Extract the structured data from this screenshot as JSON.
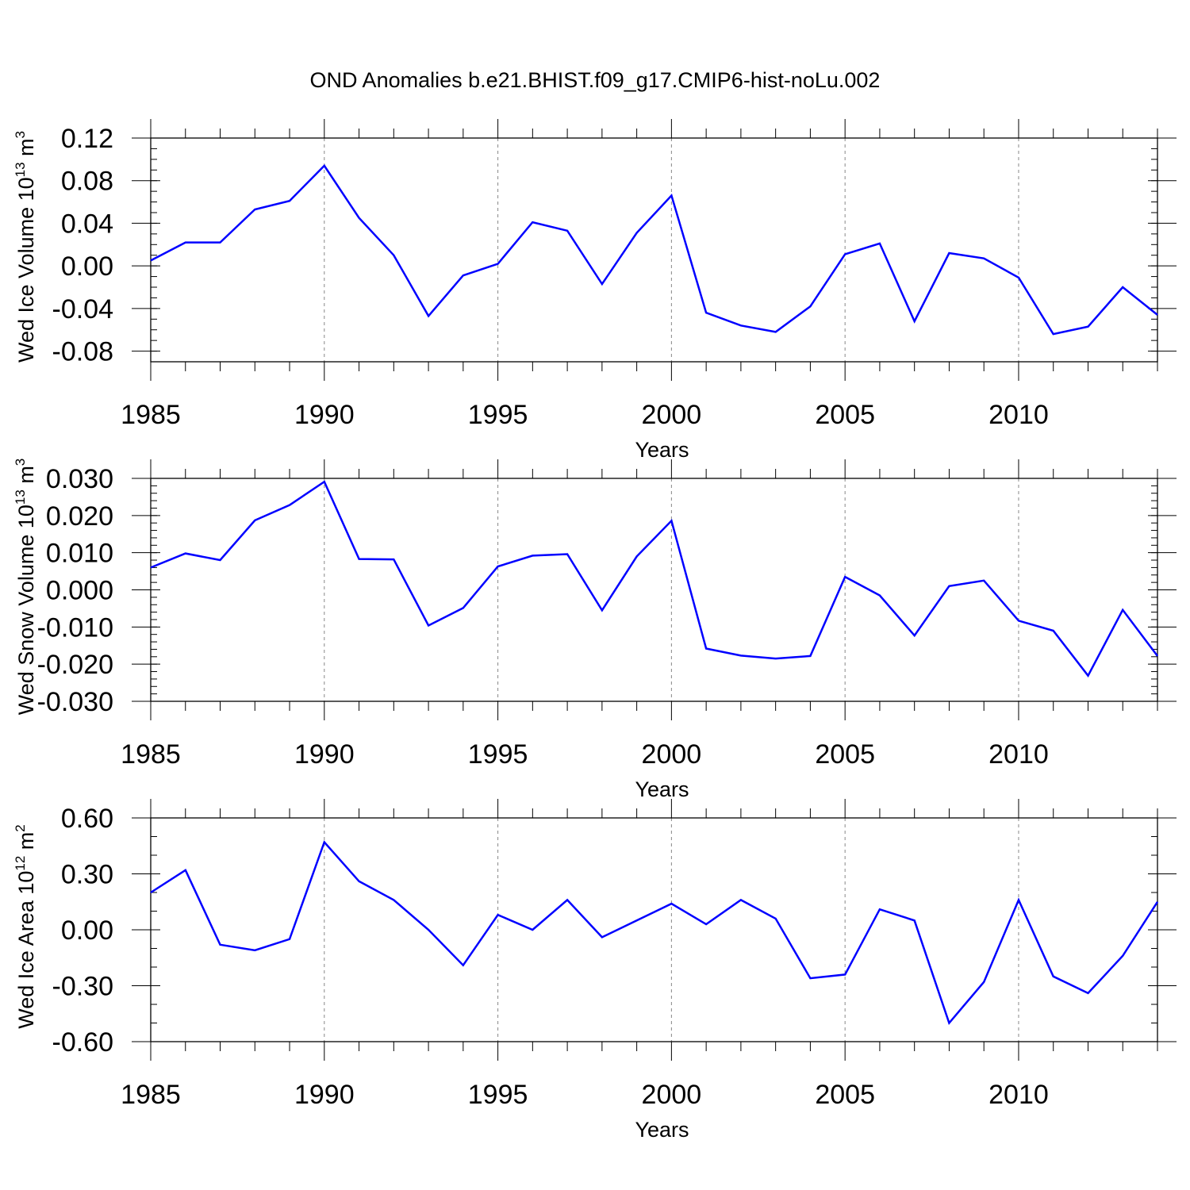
{
  "title": "OND Anomalies b.e21.BHIST.f09_g17.CMIP6-hist-noLu.002",
  "colors": {
    "line": "#0000ff",
    "axis": "#000000",
    "grid": "#888888"
  },
  "chart_data": [
    {
      "type": "line",
      "xlabel": "Years",
      "ylabel": {
        "text": "Wed Ice Volume 10",
        "exp": "13",
        "unit": " m",
        "unit_exp": "3"
      },
      "xlim": [
        1985,
        2014
      ],
      "ylim": [
        -0.09,
        0.12
      ],
      "yticks": [
        {
          "v": 0.12,
          "label": "0.12"
        },
        {
          "v": 0.08,
          "label": "0.08"
        },
        {
          "v": 0.04,
          "label": "0.04"
        },
        {
          "v": 0.0,
          "label": "0.00"
        },
        {
          "v": -0.04,
          "label": "-0.04"
        },
        {
          "v": -0.08,
          "label": "-0.08"
        }
      ],
      "yminor_step": 0.01,
      "xticks": [
        {
          "v": 1985,
          "label": "1985"
        },
        {
          "v": 1990,
          "label": "1990"
        },
        {
          "v": 1995,
          "label": "1995"
        },
        {
          "v": 2000,
          "label": "2000"
        },
        {
          "v": 2005,
          "label": "2005"
        },
        {
          "v": 2010,
          "label": "2010"
        }
      ],
      "grid_x": [
        1990,
        1995,
        2000,
        2005,
        2010
      ],
      "x": [
        1985,
        1986,
        1987,
        1988,
        1989,
        1990,
        1991,
        1992,
        1993,
        1994,
        1995,
        1996,
        1997,
        1998,
        1999,
        2000,
        2001,
        2002,
        2003,
        2004,
        2005,
        2006,
        2007,
        2008,
        2009,
        2010,
        2011,
        2012,
        2013,
        2014
      ],
      "y": [
        0.005,
        0.022,
        0.022,
        0.053,
        0.061,
        0.094,
        0.045,
        0.01,
        -0.047,
        -0.009,
        0.002,
        0.041,
        0.033,
        -0.017,
        0.031,
        0.066,
        -0.044,
        -0.056,
        -0.062,
        -0.038,
        0.011,
        0.021,
        -0.052,
        0.012,
        0.007,
        -0.011,
        -0.064,
        -0.057,
        -0.02,
        -0.046
      ]
    },
    {
      "type": "line",
      "xlabel": "Years",
      "ylabel": {
        "text": "Wed Snow Volume 10",
        "exp": "13",
        "unit": " m",
        "unit_exp": "3"
      },
      "xlim": [
        1985,
        2014
      ],
      "ylim": [
        -0.03,
        0.03
      ],
      "yticks": [
        {
          "v": 0.03,
          "label": "0.030"
        },
        {
          "v": 0.02,
          "label": "0.020"
        },
        {
          "v": 0.01,
          "label": "0.010"
        },
        {
          "v": 0.0,
          "label": "0.000"
        },
        {
          "v": -0.01,
          "label": "-0.010"
        },
        {
          "v": -0.02,
          "label": "-0.020"
        },
        {
          "v": -0.03,
          "label": "-0.030"
        }
      ],
      "yminor_step": 0.002,
      "xticks": [
        {
          "v": 1985,
          "label": "1985"
        },
        {
          "v": 1990,
          "label": "1990"
        },
        {
          "v": 1995,
          "label": "1995"
        },
        {
          "v": 2000,
          "label": "2000"
        },
        {
          "v": 2005,
          "label": "2005"
        },
        {
          "v": 2010,
          "label": "2010"
        }
      ],
      "grid_x": [
        1990,
        1995,
        2000,
        2005,
        2010
      ],
      "x": [
        1985,
        1986,
        1987,
        1988,
        1989,
        1990,
        1991,
        1992,
        1993,
        1994,
        1995,
        1996,
        1997,
        1998,
        1999,
        2000,
        2001,
        2002,
        2003,
        2004,
        2005,
        2006,
        2007,
        2008,
        2009,
        2010,
        2011,
        2012,
        2013,
        2014
      ],
      "y": [
        0.006,
        0.0098,
        0.008,
        0.0187,
        0.0228,
        0.0291,
        0.0083,
        0.0082,
        -0.0096,
        -0.0049,
        0.0063,
        0.0092,
        0.0096,
        -0.0055,
        0.009,
        0.0186,
        -0.0158,
        -0.0177,
        -0.0185,
        -0.0178,
        0.0035,
        -0.0015,
        -0.0123,
        0.001,
        0.0025,
        -0.0083,
        -0.011,
        -0.0231,
        -0.0054,
        -0.0178
      ]
    },
    {
      "type": "line",
      "xlabel": "Years",
      "ylabel": {
        "text": "Wed Ice Area 10",
        "exp": "12",
        "unit": " m",
        "unit_exp": "2"
      },
      "xlim": [
        1985,
        2014
      ],
      "ylim": [
        -0.6,
        0.6
      ],
      "yticks": [
        {
          "v": 0.6,
          "label": "0.60"
        },
        {
          "v": 0.3,
          "label": "0.30"
        },
        {
          "v": 0.0,
          "label": "0.00"
        },
        {
          "v": -0.3,
          "label": "-0.30"
        },
        {
          "v": -0.6,
          "label": "-0.60"
        }
      ],
      "yminor_step": 0.1,
      "xticks": [
        {
          "v": 1985,
          "label": "1985"
        },
        {
          "v": 1990,
          "label": "1990"
        },
        {
          "v": 1995,
          "label": "1995"
        },
        {
          "v": 2000,
          "label": "2000"
        },
        {
          "v": 2005,
          "label": "2005"
        },
        {
          "v": 2010,
          "label": "2010"
        }
      ],
      "grid_x": [
        1990,
        1995,
        2000,
        2005,
        2010
      ],
      "x": [
        1985,
        1986,
        1987,
        1988,
        1989,
        1990,
        1991,
        1992,
        1993,
        1994,
        1995,
        1996,
        1997,
        1998,
        1999,
        2000,
        2001,
        2002,
        2003,
        2004,
        2005,
        2006,
        2007,
        2008,
        2009,
        2010,
        2011,
        2012,
        2013,
        2014
      ],
      "y": [
        0.2,
        0.32,
        -0.08,
        -0.11,
        -0.05,
        0.47,
        0.26,
        0.16,
        0.0,
        -0.19,
        0.08,
        0.0,
        0.16,
        -0.04,
        0.05,
        0.14,
        0.03,
        0.16,
        0.06,
        -0.26,
        -0.24,
        0.11,
        0.05,
        -0.5,
        -0.28,
        0.16,
        -0.25,
        -0.34,
        -0.14,
        0.15
      ]
    }
  ]
}
